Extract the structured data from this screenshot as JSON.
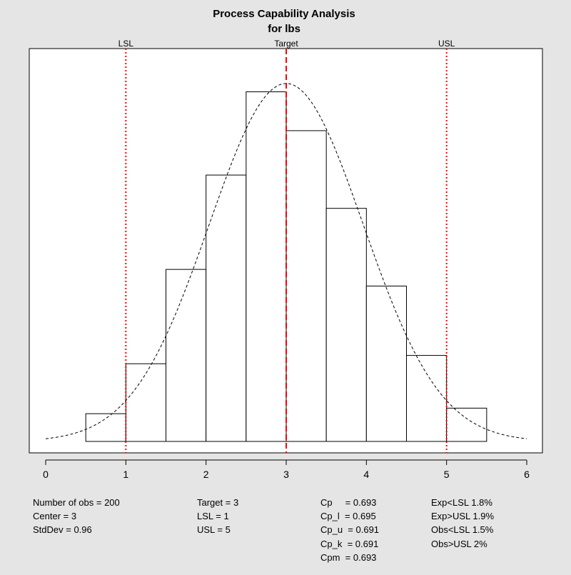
{
  "chart_data": {
    "type": "bar",
    "title": "Process Capability Analysis",
    "subtitle": "for lbs",
    "xlabel": "",
    "ylabel": "",
    "xlim": [
      0,
      6
    ],
    "x_ticks": [
      "0",
      "1",
      "2",
      "3",
      "4",
      "5",
      "6"
    ],
    "bins": [
      {
        "from": 0.5,
        "to": 1.0,
        "density": 0.05
      },
      {
        "from": 1.0,
        "to": 1.5,
        "density": 0.14
      },
      {
        "from": 1.5,
        "to": 2.0,
        "density": 0.31
      },
      {
        "from": 2.0,
        "to": 2.5,
        "density": 0.48
      },
      {
        "from": 2.5,
        "to": 3.0,
        "density": 0.63
      },
      {
        "from": 3.0,
        "to": 3.5,
        "density": 0.56
      },
      {
        "from": 3.5,
        "to": 4.0,
        "density": 0.42
      },
      {
        "from": 4.0,
        "to": 4.5,
        "density": 0.28
      },
      {
        "from": 4.5,
        "to": 5.0,
        "density": 0.155
      },
      {
        "from": 5.0,
        "to": 5.5,
        "density": 0.06
      }
    ],
    "normal_curve": {
      "mean": 3,
      "sd": 0.96,
      "from": 0,
      "to": 6
    },
    "spec_lines": [
      {
        "name": "LSL",
        "label": "LSL",
        "value": 1,
        "style": "dotted",
        "color": "#ff0000"
      },
      {
        "name": "Target",
        "label": "Target",
        "value": 3,
        "style": "dashed",
        "color": "#ff0000"
      },
      {
        "name": "USL",
        "label": "USL",
        "value": 5,
        "style": "dotted",
        "color": "#ff0000"
      }
    ],
    "y_max": 0.65
  },
  "stats": {
    "col1": [
      "Number of obs = 200",
      "Center = 3",
      "StdDev = 0.96"
    ],
    "col2": [
      "Target = 3",
      "LSL = 1",
      "USL = 5"
    ],
    "col3": [
      "Cp     = 0.693",
      "Cp_l  = 0.695",
      "Cp_u  = 0.691",
      "Cp_k  = 0.691",
      "Cpm  = 0.693"
    ],
    "col4": [
      "Exp<LSL 1.8%",
      "Exp>USL 1.9%",
      "Obs<LSL 1.5%",
      "Obs>USL 2%"
    ]
  },
  "colors": {
    "background": "#e5e5e5",
    "plot_background": "#ffffff",
    "spec_line": "#ff0000",
    "bar_stroke": "#000000"
  }
}
